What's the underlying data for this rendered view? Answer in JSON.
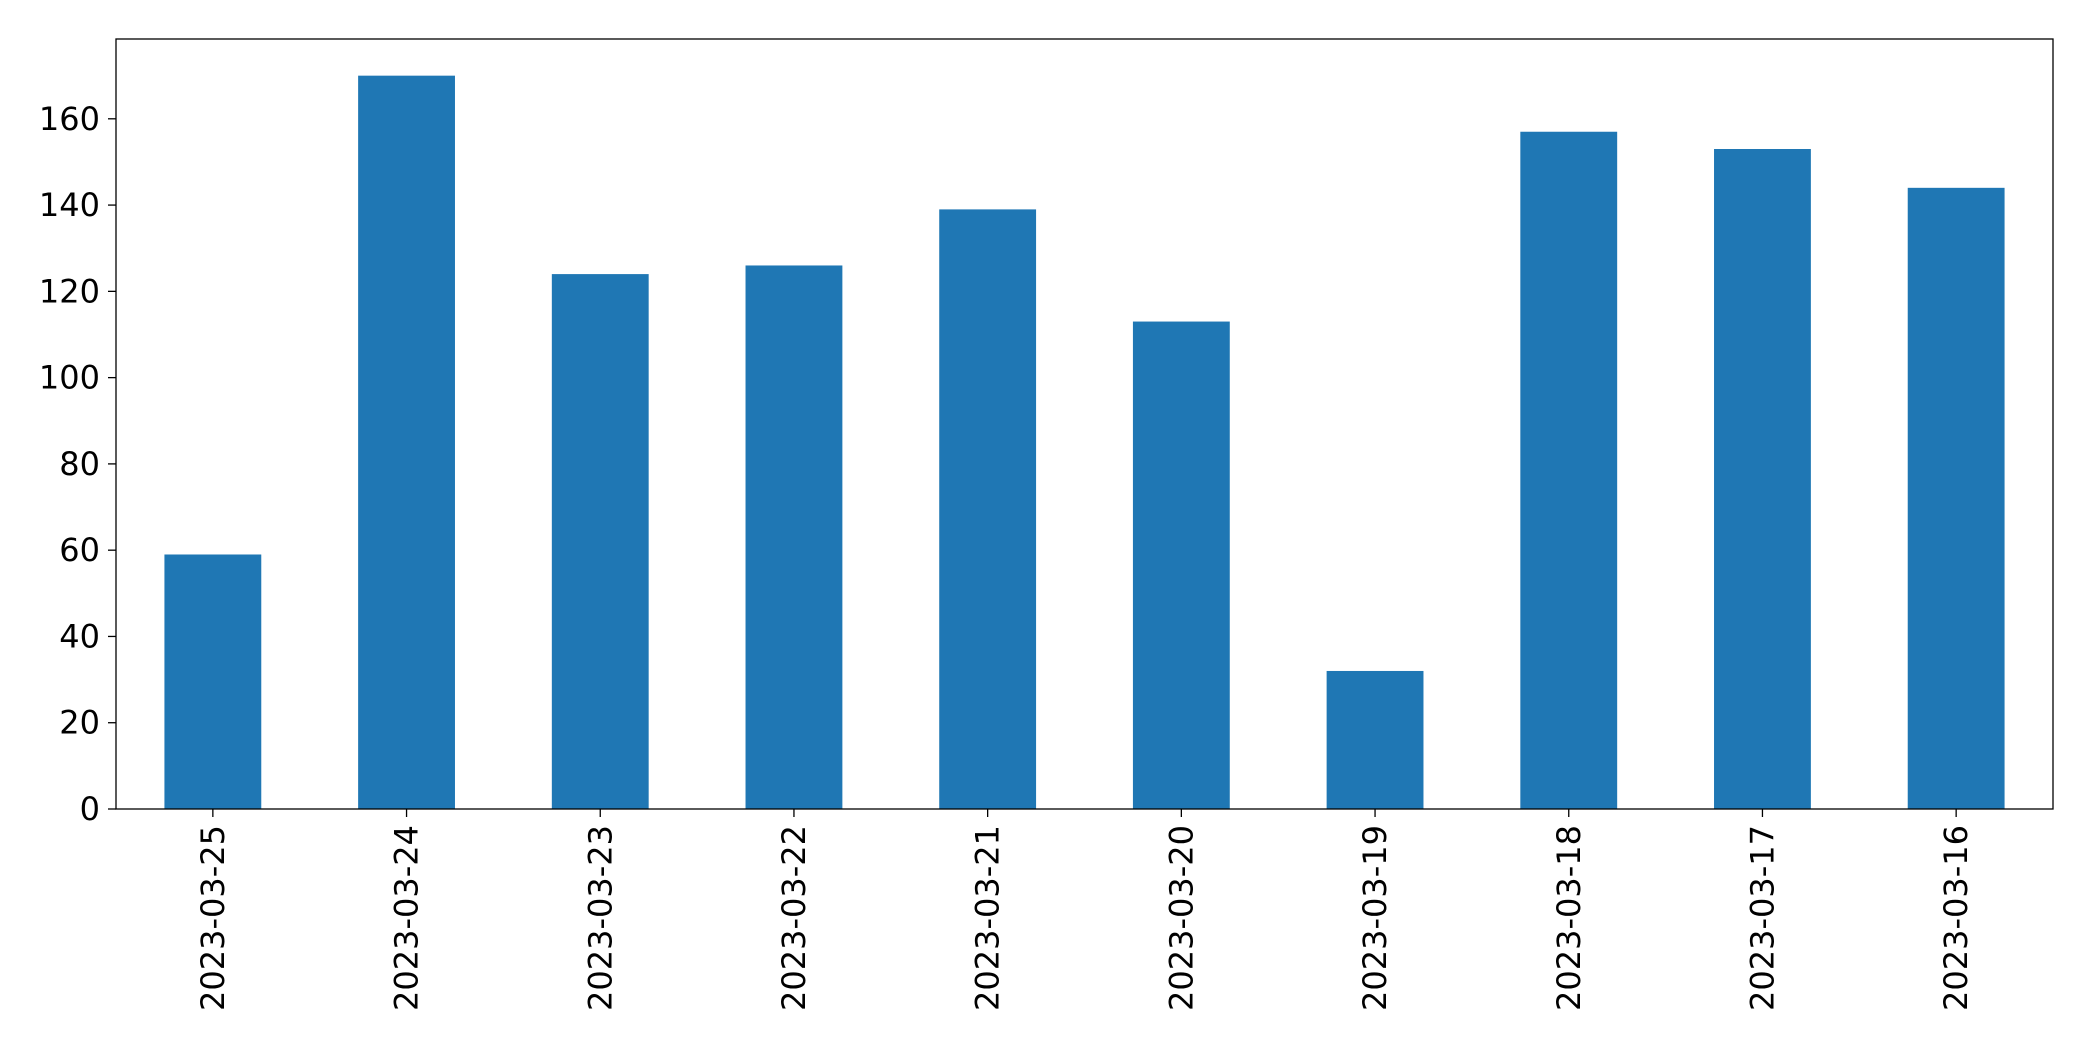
{
  "chart_data": {
    "type": "bar",
    "categories": [
      "2023-03-25",
      "2023-03-24",
      "2023-03-23",
      "2023-03-22",
      "2023-03-21",
      "2023-03-20",
      "2023-03-19",
      "2023-03-18",
      "2023-03-17",
      "2023-03-16"
    ],
    "values": [
      59,
      170,
      124,
      126,
      139,
      113,
      32,
      157,
      153,
      144
    ],
    "color": "#1f77b4",
    "ylim": [
      0,
      178.5
    ],
    "yticks": [
      0,
      20,
      40,
      60,
      80,
      100,
      120,
      140,
      160
    ],
    "grid": false
  }
}
